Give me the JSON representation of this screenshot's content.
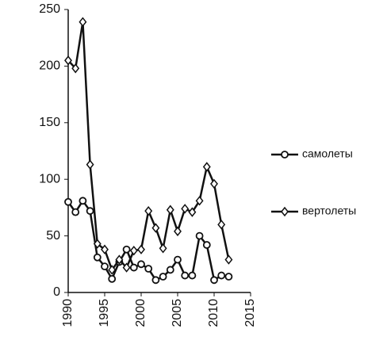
{
  "chart_data": {
    "type": "line",
    "x": [
      1990,
      1991,
      1992,
      1993,
      1994,
      1995,
      1996,
      1997,
      1998,
      1999,
      2000,
      2001,
      2002,
      2003,
      2004,
      2005,
      2006,
      2007,
      2008,
      2009,
      2010,
      2011,
      2012
    ],
    "series": [
      {
        "name": "самолеты",
        "color": "#111111",
        "marker": "circle",
        "values": [
          80,
          71,
          81,
          72,
          31,
          23,
          12,
          27,
          38,
          22,
          25,
          21,
          11,
          14,
          20,
          29,
          15,
          15,
          50,
          42,
          11,
          15,
          14
        ]
      },
      {
        "name": "вертолеты",
        "color": "#111111",
        "marker": "diamond",
        "values": [
          205,
          198,
          239,
          113,
          43,
          38,
          20,
          29,
          22,
          37,
          38,
          72,
          57,
          39,
          73,
          54,
          74,
          71,
          81,
          111,
          96,
          60,
          29
        ]
      }
    ],
    "xlim": [
      1990,
      2015
    ],
    "xticks": [
      1990,
      1995,
      2000,
      2005,
      2010,
      2015
    ],
    "ylim": [
      0,
      250
    ],
    "yticks": [
      0,
      50,
      100,
      150,
      200,
      250
    ],
    "legend": "right"
  }
}
